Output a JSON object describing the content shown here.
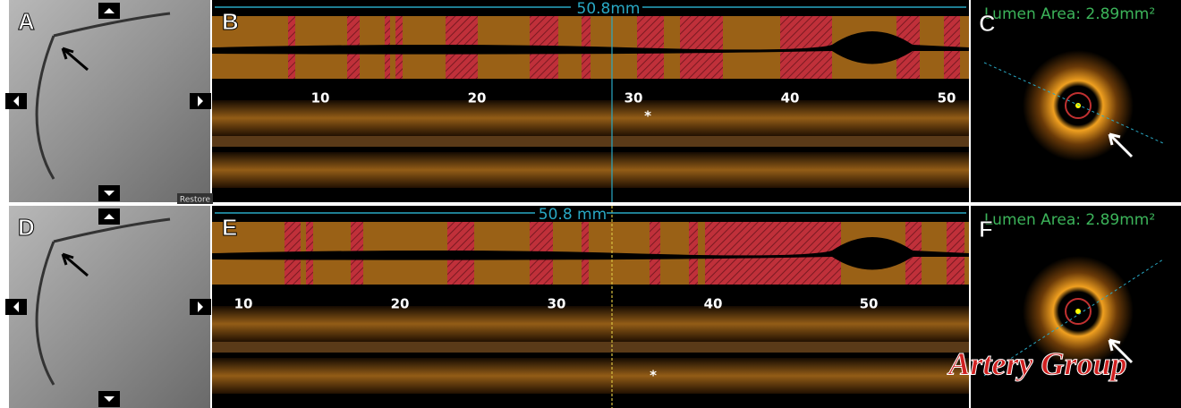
{
  "rows": [
    {
      "angio": {
        "label": "A"
      },
      "longitudinal": {
        "label": "B",
        "length": "50.8mm",
        "ticks": [
          "10",
          "20",
          "30",
          "40",
          "50"
        ],
        "marker": "*"
      },
      "cross_section": {
        "label": "C",
        "lumen_area": "Lumen Area: 2.89mm²"
      }
    },
    {
      "angio": {
        "label": "D"
      },
      "longitudinal": {
        "label": "E",
        "length": "50.8 mm",
        "ticks": [
          "10",
          "20",
          "30",
          "40",
          "50"
        ],
        "marker": "*"
      },
      "cross_section": {
        "label": "F",
        "lumen_area": "Lumen Area: 2.89mm²"
      }
    }
  ],
  "restore": "Restore",
  "watermark": "Artery Group"
}
